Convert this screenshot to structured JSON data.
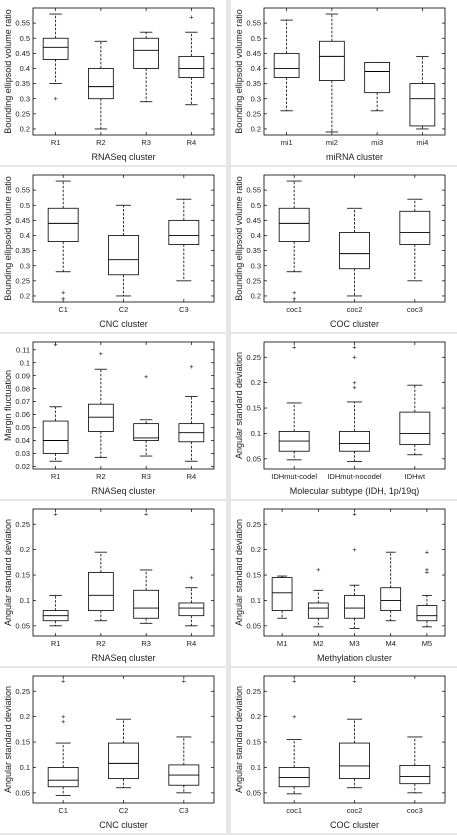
{
  "colors": {
    "box": "#000000",
    "median": "#000000",
    "whisker": "#000000",
    "outlier": "#000000",
    "panel_bg": "#ffffff",
    "gutter": "#e6e6e6"
  },
  "chart_data": [
    {
      "type": "box",
      "xlabel": "RNASeq cluster",
      "ylabel": "Bounding ellipsoid volume ratio",
      "ylim": [
        0.18,
        0.6
      ],
      "yticks": [
        "0.2",
        "0.25",
        "0.3",
        "0.35",
        "0.4",
        "0.45",
        "0.5",
        "0.55"
      ],
      "ytick_values": [
        0.2,
        0.25,
        0.3,
        0.35,
        0.4,
        0.45,
        0.5,
        0.55
      ],
      "categories": [
        "R1",
        "R2",
        "R3",
        "R4"
      ],
      "boxes": [
        {
          "min": 0.35,
          "q1": 0.43,
          "median": 0.47,
          "q3": 0.5,
          "max": 0.58,
          "outliers": [
            0.3
          ]
        },
        {
          "min": 0.2,
          "q1": 0.3,
          "median": 0.34,
          "q3": 0.4,
          "max": 0.49,
          "outliers": []
        },
        {
          "min": 0.29,
          "q1": 0.4,
          "median": 0.46,
          "q3": 0.5,
          "max": 0.52,
          "outliers": []
        },
        {
          "min": 0.28,
          "q1": 0.37,
          "median": 0.4,
          "q3": 0.44,
          "max": 0.52,
          "outliers": [
            0.57
          ]
        }
      ]
    },
    {
      "type": "box",
      "xlabel": "miRNA cluster",
      "ylabel": "Bounding ellipsoid volume ratio",
      "ylim": [
        0.18,
        0.6
      ],
      "yticks": [
        "0.2",
        "0.25",
        "0.3",
        "0.35",
        "0.4",
        "0.45",
        "0.5",
        "0.55"
      ],
      "ytick_values": [
        0.2,
        0.25,
        0.3,
        0.35,
        0.4,
        0.45,
        0.5,
        0.55
      ],
      "categories": [
        "mi1",
        "mi2",
        "mi3",
        "mi4"
      ],
      "boxes": [
        {
          "min": 0.26,
          "q1": 0.37,
          "median": 0.4,
          "q3": 0.45,
          "max": 0.56,
          "outliers": []
        },
        {
          "min": 0.19,
          "q1": 0.36,
          "median": 0.44,
          "q3": 0.49,
          "max": 0.58,
          "outliers": []
        },
        {
          "min": 0.26,
          "q1": 0.32,
          "median": 0.39,
          "q3": 0.42,
          "max": 0.42,
          "outliers": []
        },
        {
          "min": 0.2,
          "q1": 0.21,
          "median": 0.3,
          "q3": 0.35,
          "max": 0.44,
          "outliers": []
        }
      ]
    },
    {
      "type": "box",
      "xlabel": "CNC cluster",
      "ylabel": "Bounding ellipsoid volume ratio",
      "ylim": [
        0.18,
        0.6
      ],
      "yticks": [
        "0.2",
        "0.25",
        "0.3",
        "0.35",
        "0.4",
        "0.45",
        "0.5",
        "0.55"
      ],
      "ytick_values": [
        0.2,
        0.25,
        0.3,
        0.35,
        0.4,
        0.45,
        0.5,
        0.55
      ],
      "categories": [
        "C1",
        "C2",
        "C3"
      ],
      "boxes": [
        {
          "min": 0.28,
          "q1": 0.38,
          "median": 0.44,
          "q3": 0.49,
          "max": 0.58,
          "outliers": [
            0.19,
            0.21
          ]
        },
        {
          "min": 0.2,
          "q1": 0.27,
          "median": 0.32,
          "q3": 0.4,
          "max": 0.5,
          "outliers": []
        },
        {
          "min": 0.25,
          "q1": 0.37,
          "median": 0.4,
          "q3": 0.45,
          "max": 0.52,
          "outliers": []
        }
      ]
    },
    {
      "type": "box",
      "xlabel": "COC cluster",
      "ylabel": "Bounding ellipsoid volume ratio",
      "ylim": [
        0.18,
        0.6
      ],
      "yticks": [
        "0.2",
        "0.25",
        "0.3",
        "0.35",
        "0.4",
        "0.45",
        "0.5",
        "0.55"
      ],
      "ytick_values": [
        0.2,
        0.25,
        0.3,
        0.35,
        0.4,
        0.45,
        0.5,
        0.55
      ],
      "categories": [
        "coc1",
        "coc2",
        "coc3"
      ],
      "boxes": [
        {
          "min": 0.28,
          "q1": 0.38,
          "median": 0.44,
          "q3": 0.49,
          "max": 0.58,
          "outliers": [
            0.19,
            0.21
          ]
        },
        {
          "min": 0.2,
          "q1": 0.29,
          "median": 0.34,
          "q3": 0.41,
          "max": 0.49,
          "outliers": []
        },
        {
          "min": 0.25,
          "q1": 0.37,
          "median": 0.41,
          "q3": 0.48,
          "max": 0.52,
          "outliers": []
        }
      ]
    },
    {
      "type": "box",
      "xlabel": "RNASeq cluster",
      "ylabel": "Margin fluctuation",
      "ylim": [
        0.018,
        0.116
      ],
      "yticks": [
        "0.02",
        "0.03",
        "0.04",
        "0.05",
        "0.06",
        "0.07",
        "0.08",
        "0.09",
        "0.1",
        "0.11"
      ],
      "ytick_values": [
        0.02,
        0.03,
        0.04,
        0.05,
        0.06,
        0.07,
        0.08,
        0.09,
        0.1,
        0.11
      ],
      "categories": [
        "R1",
        "R2",
        "R3",
        "R4"
      ],
      "boxes": [
        {
          "min": 0.024,
          "q1": 0.03,
          "median": 0.04,
          "q3": 0.055,
          "max": 0.066,
          "outliers": [
            0.114
          ]
        },
        {
          "min": 0.027,
          "q1": 0.047,
          "median": 0.058,
          "q3": 0.068,
          "max": 0.095,
          "outliers": [
            0.107
          ]
        },
        {
          "min": 0.028,
          "q1": 0.04,
          "median": 0.042,
          "q3": 0.053,
          "max": 0.056,
          "outliers": [
            0.089
          ]
        },
        {
          "min": 0.024,
          "q1": 0.039,
          "median": 0.046,
          "q3": 0.053,
          "max": 0.074,
          "outliers": [
            0.097
          ]
        }
      ]
    },
    {
      "type": "box",
      "xlabel": "Molecular subtype (IDH, 1p/19q)",
      "ylabel": "Angular standard deviation",
      "ylim": [
        0.03,
        0.28
      ],
      "yticks": [
        "0.05",
        "0.1",
        "0.15",
        "0.2",
        "0.25"
      ],
      "ytick_values": [
        0.05,
        0.1,
        0.15,
        0.2,
        0.25
      ],
      "categories": [
        "IDHmut-codel",
        "IDHmut-nocodel",
        "IDHwt"
      ],
      "boxes": [
        {
          "min": 0.048,
          "q1": 0.065,
          "median": 0.085,
          "q3": 0.104,
          "max": 0.16,
          "outliers": [
            0.27
          ]
        },
        {
          "min": 0.045,
          "q1": 0.065,
          "median": 0.08,
          "q3": 0.104,
          "max": 0.162,
          "outliers": [
            0.19,
            0.2,
            0.25,
            0.27
          ]
        },
        {
          "min": 0.058,
          "q1": 0.078,
          "median": 0.1,
          "q3": 0.142,
          "max": 0.195,
          "outliers": []
        }
      ]
    },
    {
      "type": "box",
      "xlabel": "RNASeq cluster",
      "ylabel": "Angular standard deviation",
      "ylim": [
        0.03,
        0.28
      ],
      "yticks": [
        "0.05",
        "0.1",
        "0.15",
        "0.2",
        "0.25"
      ],
      "ytick_values": [
        0.05,
        0.1,
        0.15,
        0.2,
        0.25
      ],
      "categories": [
        "R1",
        "R2",
        "R3",
        "R4"
      ],
      "boxes": [
        {
          "min": 0.05,
          "q1": 0.06,
          "median": 0.07,
          "q3": 0.08,
          "max": 0.11,
          "outliers": [
            0.27
          ]
        },
        {
          "min": 0.06,
          "q1": 0.08,
          "median": 0.11,
          "q3": 0.155,
          "max": 0.195,
          "outliers": []
        },
        {
          "min": 0.055,
          "q1": 0.065,
          "median": 0.085,
          "q3": 0.12,
          "max": 0.16,
          "outliers": [
            0.27
          ]
        },
        {
          "min": 0.05,
          "q1": 0.07,
          "median": 0.085,
          "q3": 0.095,
          "max": 0.125,
          "outliers": [
            0.145
          ]
        }
      ]
    },
    {
      "type": "box",
      "xlabel": "Methylation cluster",
      "ylabel": "Angular standard deviation",
      "ylim": [
        0.03,
        0.28
      ],
      "yticks": [
        "0.05",
        "0.1",
        "0.15",
        "0.2",
        "0.25"
      ],
      "ytick_values": [
        0.05,
        0.1,
        0.15,
        0.2,
        0.25
      ],
      "categories": [
        "M1",
        "M2",
        "M3",
        "M4",
        "M5"
      ],
      "boxes": [
        {
          "min": 0.065,
          "q1": 0.08,
          "median": 0.115,
          "q3": 0.145,
          "max": 0.148,
          "outliers": []
        },
        {
          "min": 0.048,
          "q1": 0.065,
          "median": 0.085,
          "q3": 0.095,
          "max": 0.12,
          "outliers": [
            0.16
          ]
        },
        {
          "min": 0.045,
          "q1": 0.065,
          "median": 0.085,
          "q3": 0.11,
          "max": 0.13,
          "outliers": [
            0.2,
            0.27
          ]
        },
        {
          "min": 0.06,
          "q1": 0.08,
          "median": 0.1,
          "q3": 0.125,
          "max": 0.195,
          "outliers": []
        },
        {
          "min": 0.048,
          "q1": 0.06,
          "median": 0.07,
          "q3": 0.09,
          "max": 0.11,
          "outliers": [
            0.155,
            0.16,
            0.195
          ]
        }
      ]
    },
    {
      "type": "box",
      "xlabel": "CNC cluster",
      "ylabel": "Angular standard deviation",
      "ylim": [
        0.03,
        0.28
      ],
      "yticks": [
        "0.05",
        "0.1",
        "0.15",
        "0.2",
        "0.25"
      ],
      "ytick_values": [
        0.05,
        0.1,
        0.15,
        0.2,
        0.25
      ],
      "categories": [
        "C1",
        "C2",
        "C3"
      ],
      "boxes": [
        {
          "min": 0.045,
          "q1": 0.062,
          "median": 0.075,
          "q3": 0.1,
          "max": 0.148,
          "outliers": [
            0.19,
            0.2,
            0.27
          ]
        },
        {
          "min": 0.06,
          "q1": 0.078,
          "median": 0.108,
          "q3": 0.148,
          "max": 0.195,
          "outliers": []
        },
        {
          "min": 0.05,
          "q1": 0.065,
          "median": 0.085,
          "q3": 0.105,
          "max": 0.16,
          "outliers": [
            0.27
          ]
        }
      ]
    },
    {
      "type": "box",
      "xlabel": "COC cluster",
      "ylabel": "Angular standard deviation",
      "ylim": [
        0.03,
        0.28
      ],
      "yticks": [
        "0.05",
        "0.1",
        "0.15",
        "0.2",
        "0.25"
      ],
      "ytick_values": [
        0.05,
        0.1,
        0.15,
        0.2,
        0.25
      ],
      "categories": [
        "coc1",
        "coc2",
        "coc3"
      ],
      "boxes": [
        {
          "min": 0.048,
          "q1": 0.062,
          "median": 0.08,
          "q3": 0.1,
          "max": 0.155,
          "outliers": [
            0.2,
            0.27
          ]
        },
        {
          "min": 0.06,
          "q1": 0.078,
          "median": 0.103,
          "q3": 0.148,
          "max": 0.195,
          "outliers": [
            0.27
          ]
        },
        {
          "min": 0.05,
          "q1": 0.068,
          "median": 0.082,
          "q3": 0.104,
          "max": 0.16,
          "outliers": []
        }
      ]
    }
  ]
}
